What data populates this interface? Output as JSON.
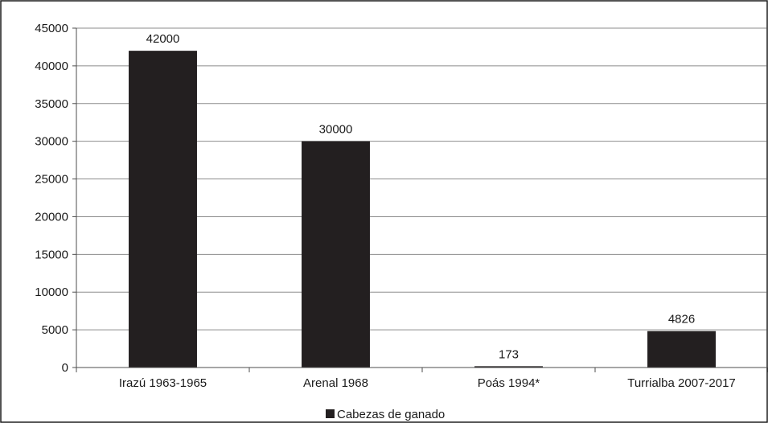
{
  "chart_data": {
    "type": "bar",
    "categories": [
      "Irazú 1963-1965",
      "Arenal 1968",
      "Poás 1994*",
      "Turrialba 2007-2017"
    ],
    "series": [
      {
        "name": "Cabezas de ganado",
        "values": [
          42000,
          30000,
          173,
          4826
        ]
      }
    ],
    "data_labels": [
      "42000",
      "30000",
      "173",
      "4826"
    ],
    "ylim": [
      0,
      45000
    ],
    "yticks": [
      0,
      5000,
      10000,
      15000,
      20000,
      25000,
      30000,
      35000,
      40000,
      45000
    ],
    "grid": true,
    "legend_position": "bottom",
    "colors": {
      "bar": "#231f20",
      "grid": "#8c8c8c",
      "axis": "#4d4d4d",
      "frame": "#1a1a1a"
    }
  }
}
